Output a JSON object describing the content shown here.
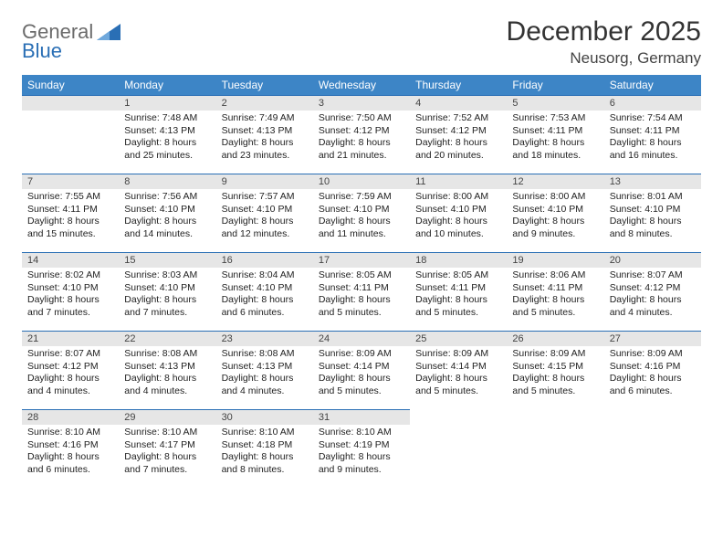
{
  "brand": {
    "word1": "General",
    "word2": "Blue",
    "triangle_color": "#2a6fb5"
  },
  "title": "December 2025",
  "location": "Neusorg, Germany",
  "header_bg": "#3d85c6",
  "header_fg": "#ffffff",
  "dayhead_bg": "#e6e6e6",
  "rule_color": "#2a6fb5",
  "weekdays": [
    "Sunday",
    "Monday",
    "Tuesday",
    "Wednesday",
    "Thursday",
    "Friday",
    "Saturday"
  ],
  "weeks": [
    [
      null,
      {
        "n": "1",
        "sr": "7:48 AM",
        "ss": "4:13 PM",
        "dl1": "Daylight: 8 hours",
        "dl2": "and 25 minutes."
      },
      {
        "n": "2",
        "sr": "7:49 AM",
        "ss": "4:13 PM",
        "dl1": "Daylight: 8 hours",
        "dl2": "and 23 minutes."
      },
      {
        "n": "3",
        "sr": "7:50 AM",
        "ss": "4:12 PM",
        "dl1": "Daylight: 8 hours",
        "dl2": "and 21 minutes."
      },
      {
        "n": "4",
        "sr": "7:52 AM",
        "ss": "4:12 PM",
        "dl1": "Daylight: 8 hours",
        "dl2": "and 20 minutes."
      },
      {
        "n": "5",
        "sr": "7:53 AM",
        "ss": "4:11 PM",
        "dl1": "Daylight: 8 hours",
        "dl2": "and 18 minutes."
      },
      {
        "n": "6",
        "sr": "7:54 AM",
        "ss": "4:11 PM",
        "dl1": "Daylight: 8 hours",
        "dl2": "and 16 minutes."
      }
    ],
    [
      {
        "n": "7",
        "sr": "7:55 AM",
        "ss": "4:11 PM",
        "dl1": "Daylight: 8 hours",
        "dl2": "and 15 minutes."
      },
      {
        "n": "8",
        "sr": "7:56 AM",
        "ss": "4:10 PM",
        "dl1": "Daylight: 8 hours",
        "dl2": "and 14 minutes."
      },
      {
        "n": "9",
        "sr": "7:57 AM",
        "ss": "4:10 PM",
        "dl1": "Daylight: 8 hours",
        "dl2": "and 12 minutes."
      },
      {
        "n": "10",
        "sr": "7:59 AM",
        "ss": "4:10 PM",
        "dl1": "Daylight: 8 hours",
        "dl2": "and 11 minutes."
      },
      {
        "n": "11",
        "sr": "8:00 AM",
        "ss": "4:10 PM",
        "dl1": "Daylight: 8 hours",
        "dl2": "and 10 minutes."
      },
      {
        "n": "12",
        "sr": "8:00 AM",
        "ss": "4:10 PM",
        "dl1": "Daylight: 8 hours",
        "dl2": "and 9 minutes."
      },
      {
        "n": "13",
        "sr": "8:01 AM",
        "ss": "4:10 PM",
        "dl1": "Daylight: 8 hours",
        "dl2": "and 8 minutes."
      }
    ],
    [
      {
        "n": "14",
        "sr": "8:02 AM",
        "ss": "4:10 PM",
        "dl1": "Daylight: 8 hours",
        "dl2": "and 7 minutes."
      },
      {
        "n": "15",
        "sr": "8:03 AM",
        "ss": "4:10 PM",
        "dl1": "Daylight: 8 hours",
        "dl2": "and 7 minutes."
      },
      {
        "n": "16",
        "sr": "8:04 AM",
        "ss": "4:10 PM",
        "dl1": "Daylight: 8 hours",
        "dl2": "and 6 minutes."
      },
      {
        "n": "17",
        "sr": "8:05 AM",
        "ss": "4:11 PM",
        "dl1": "Daylight: 8 hours",
        "dl2": "and 5 minutes."
      },
      {
        "n": "18",
        "sr": "8:05 AM",
        "ss": "4:11 PM",
        "dl1": "Daylight: 8 hours",
        "dl2": "and 5 minutes."
      },
      {
        "n": "19",
        "sr": "8:06 AM",
        "ss": "4:11 PM",
        "dl1": "Daylight: 8 hours",
        "dl2": "and 5 minutes."
      },
      {
        "n": "20",
        "sr": "8:07 AM",
        "ss": "4:12 PM",
        "dl1": "Daylight: 8 hours",
        "dl2": "and 4 minutes."
      }
    ],
    [
      {
        "n": "21",
        "sr": "8:07 AM",
        "ss": "4:12 PM",
        "dl1": "Daylight: 8 hours",
        "dl2": "and 4 minutes."
      },
      {
        "n": "22",
        "sr": "8:08 AM",
        "ss": "4:13 PM",
        "dl1": "Daylight: 8 hours",
        "dl2": "and 4 minutes."
      },
      {
        "n": "23",
        "sr": "8:08 AM",
        "ss": "4:13 PM",
        "dl1": "Daylight: 8 hours",
        "dl2": "and 4 minutes."
      },
      {
        "n": "24",
        "sr": "8:09 AM",
        "ss": "4:14 PM",
        "dl1": "Daylight: 8 hours",
        "dl2": "and 5 minutes."
      },
      {
        "n": "25",
        "sr": "8:09 AM",
        "ss": "4:14 PM",
        "dl1": "Daylight: 8 hours",
        "dl2": "and 5 minutes."
      },
      {
        "n": "26",
        "sr": "8:09 AM",
        "ss": "4:15 PM",
        "dl1": "Daylight: 8 hours",
        "dl2": "and 5 minutes."
      },
      {
        "n": "27",
        "sr": "8:09 AM",
        "ss": "4:16 PM",
        "dl1": "Daylight: 8 hours",
        "dl2": "and 6 minutes."
      }
    ],
    [
      {
        "n": "28",
        "sr": "8:10 AM",
        "ss": "4:16 PM",
        "dl1": "Daylight: 8 hours",
        "dl2": "and 6 minutes."
      },
      {
        "n": "29",
        "sr": "8:10 AM",
        "ss": "4:17 PM",
        "dl1": "Daylight: 8 hours",
        "dl2": "and 7 minutes."
      },
      {
        "n": "30",
        "sr": "8:10 AM",
        "ss": "4:18 PM",
        "dl1": "Daylight: 8 hours",
        "dl2": "and 8 minutes."
      },
      {
        "n": "31",
        "sr": "8:10 AM",
        "ss": "4:19 PM",
        "dl1": "Daylight: 8 hours",
        "dl2": "and 9 minutes."
      },
      null,
      null,
      null
    ]
  ]
}
